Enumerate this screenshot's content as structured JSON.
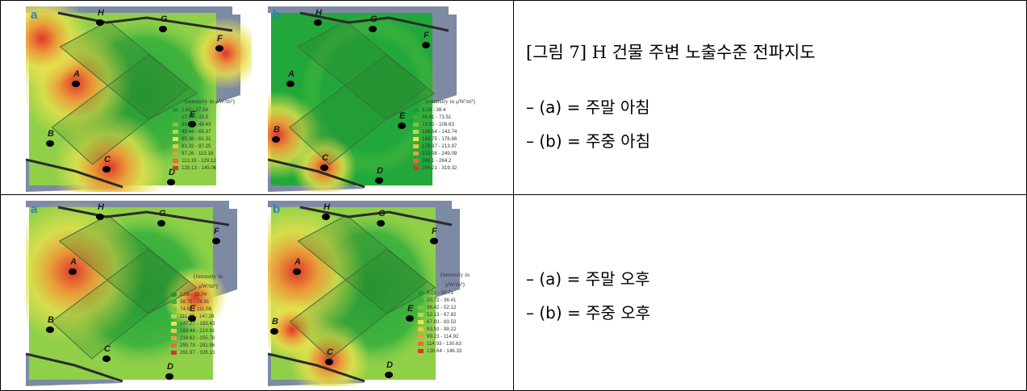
{
  "row1": {
    "caption": "[그림 7] H 건물 주변 노출수준 전파지도",
    "notes": [
      "– (a) = 주말 아침",
      "– (b) = 주중 아침"
    ],
    "panels": [
      {
        "letter": "a",
        "legend_title": [
          "(intensity in μW/m²)"
        ],
        "legend_items": [
          "1.62 - 17.56",
          "17.57 - 33.5",
          "33.51 - 49.43",
          "49.44 - 65.37",
          "65.38 - 81.31",
          "81.32 - 97.25",
          "97.26 - 113.18",
          "113.19 - 129.12",
          "129.13 - 145.06"
        ],
        "points": [
          "A",
          "B",
          "C",
          "D",
          "E",
          "F",
          "G",
          "H"
        ]
      },
      {
        "letter": "b",
        "legend_title": [
          "(intensity in μW/m²)"
        ],
        "legend_items": [
          "3.28 - 38.4",
          "38.41 - 73.51",
          "73.52 - 108.63",
          "108.64 - 143.74",
          "143.75 - 178.86",
          "178.87 - 213.97",
          "213.98 - 249.09",
          "249.1 - 284.2",
          "284.21 - 319.32"
        ],
        "points": [
          "A",
          "B",
          "C",
          "D",
          "E",
          "F",
          "G",
          "H"
        ]
      }
    ]
  },
  "row2": {
    "notes": [
      "– (a) = 주말 오후",
      "– (b) = 주중 오후"
    ],
    "panels": [
      {
        "letter": "a",
        "legend_title": [
          "(intensity in",
          "μW/m²)"
        ],
        "legend_items": [
          "2.56 - 38.74",
          "38.75 - 74.91",
          "74.92 - 111.08",
          "111.09 - 147.26",
          "147.27 - 183.43",
          "183.44 - 219.61",
          "219.62 - 255.78",
          "255.79 - 291.96",
          "291.97 - 328.13"
        ],
        "points": [
          "A",
          "B",
          "C",
          "D",
          "E",
          "F",
          "G",
          "H"
        ]
      },
      {
        "letter": "b",
        "legend_title": [
          "(intensity in",
          "μW/m²)"
        ],
        "legend_items": [
          "5.01 - 20.71",
          "20.72 - 36.41",
          "36.42 - 52.12",
          "52.13 - 67.82",
          "67.83 - 83.52",
          "83.53 - 99.22",
          "99.23 - 114.92",
          "114.93 - 130.63",
          "130.64 - 146.33"
        ],
        "points": [
          "A",
          "B",
          "C",
          "D",
          "E",
          "F",
          "G",
          "H"
        ]
      }
    ]
  },
  "legend_colors": [
    "#1f9a3a",
    "#3fae3c",
    "#79c443",
    "#b7d84a",
    "#e9e64e",
    "#f2c442",
    "#ef9a3a",
    "#e96a34",
    "#d9362c"
  ],
  "map_colors": {
    "background_stripe": "#7d8aa3",
    "building_edge": "#2b2b2b",
    "low": "#22a83a",
    "mid": "#8fd048",
    "high_yellow": "#e7e24e",
    "orange": "#ef9838",
    "red": "#e0362c"
  }
}
